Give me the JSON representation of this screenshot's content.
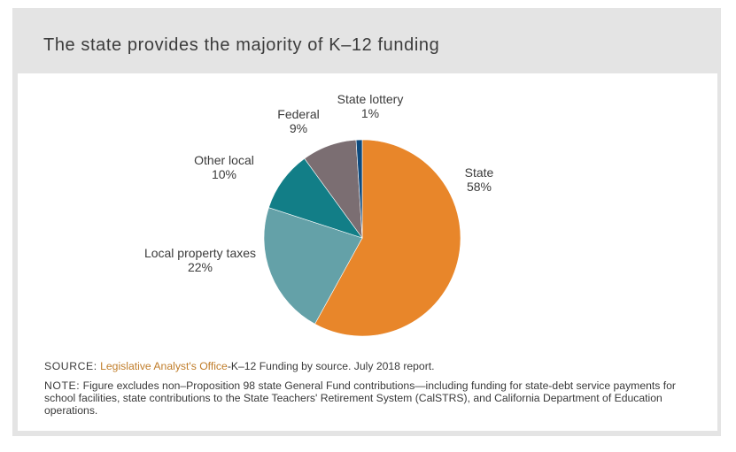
{
  "card": {
    "title": "The state provides the majority of K–12 funding"
  },
  "chart_data": {
    "type": "pie",
    "title": "The state provides the majority of K–12 funding",
    "start_angle_deg": 0,
    "direction": "clockwise",
    "slices": [
      {
        "name": "State",
        "value": 58,
        "label": "58%",
        "color": "#e8862a"
      },
      {
        "name": "Local property taxes",
        "value": 22,
        "label": "22%",
        "color": "#64a1a8"
      },
      {
        "name": "Other local",
        "value": 10,
        "label": "10%",
        "color": "#127e87"
      },
      {
        "name": "Federal",
        "value": 9,
        "label": "9%",
        "color": "#7b6e72"
      },
      {
        "name": "State lottery",
        "value": 1,
        "label": "1%",
        "color": "#0d4a7d"
      }
    ]
  },
  "footer": {
    "source_prefix": "Source:",
    "source_link": "Legislative Analyst's Office",
    "source_text": "-K–12 Funding by source. July 2018 report.",
    "note_prefix": "Note:",
    "note_text": "Figure excludes non–Proposition 98 state General Fund contributions—including funding for state-debt service payments for school facilities, state contributions to the State Teachers' Retirement System (CalSTRS), and California Department of Education operations."
  }
}
